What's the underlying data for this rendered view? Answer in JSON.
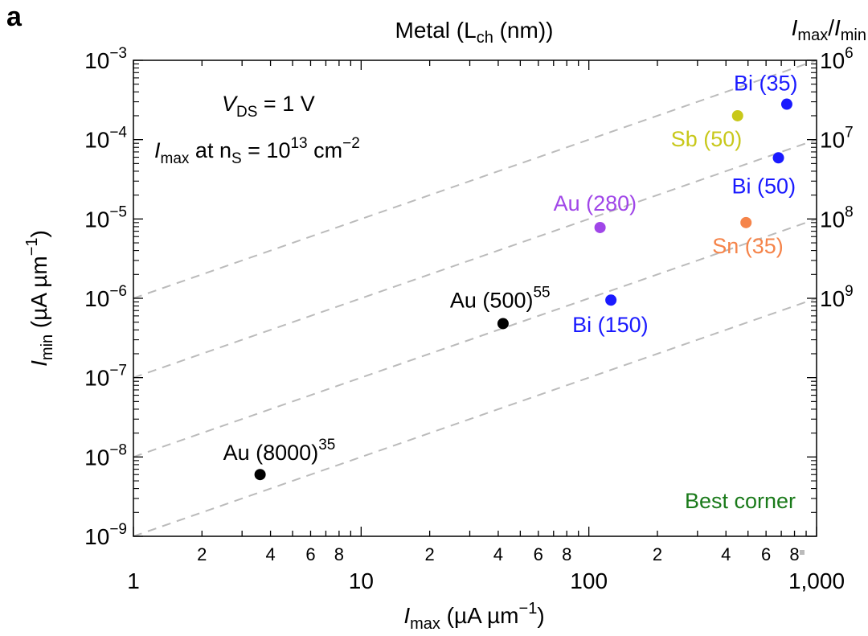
{
  "chart_data": {
    "type": "scatter",
    "panel_label": "a",
    "title": "Metal (L",
    "title_sub": "ch",
    "title_tail": " (nm))",
    "x_axis": {
      "label_main": "I",
      "label_sub": "max",
      "label_units": " (µA µm",
      "label_exp": "−1",
      "label_close": ")",
      "scale": "log",
      "range": [
        1,
        1000
      ],
      "major_ticks": [
        {
          "value": 1,
          "label": "1"
        },
        {
          "value": 10,
          "label": "10"
        },
        {
          "value": 100,
          "label": "100"
        },
        {
          "value": 1000,
          "label": "1,000"
        }
      ],
      "minor_labels": [
        "2",
        "4",
        "6",
        "8"
      ]
    },
    "y_axis": {
      "label_main": "I",
      "label_sub": "min",
      "label_units": " (µA µm",
      "label_exp": "−1",
      "label_close": ")",
      "scale": "log",
      "range": [
        1e-09,
        0.001
      ],
      "ticks": [
        {
          "value": 0.001,
          "base": "10",
          "exp": "−3"
        },
        {
          "value": 0.0001,
          "base": "10",
          "exp": "−4"
        },
        {
          "value": 1e-05,
          "base": "10",
          "exp": "−5"
        },
        {
          "value": 1e-06,
          "base": "10",
          "exp": "−6"
        },
        {
          "value": 1e-07,
          "base": "10",
          "exp": "−7"
        },
        {
          "value": 1e-08,
          "base": "10",
          "exp": "−8"
        },
        {
          "value": 1e-09,
          "base": "10",
          "exp": "−9"
        }
      ]
    },
    "right_axis": {
      "title_main": "I",
      "title_sub": "max",
      "title_slash": "/",
      "title_main2": "I",
      "title_sub2": "min",
      "ratio_ticks": [
        {
          "ratio": 1000000.0,
          "base": "10",
          "exp": "6"
        },
        {
          "ratio": 10000000.0,
          "base": "10",
          "exp": "7"
        },
        {
          "ratio": 100000000.0,
          "base": "10",
          "exp": "8"
        },
        {
          "ratio": 1000000000.0,
          "base": "10",
          "exp": "9"
        }
      ]
    },
    "reference_lines": {
      "description": "constant Imax/Imin ratio",
      "ratios": [
        1000000.0,
        10000000.0,
        100000000.0,
        1000000000.0
      ],
      "color": "#bbbbbb"
    },
    "annotations": {
      "vds_main": "V",
      "vds_sub": "DS",
      "vds_tail": " = 1 V",
      "imax_main": "I",
      "imax_sub": "max",
      "imax_at": " at n",
      "imax_ns_sub": "S",
      "imax_eq": " = 10",
      "imax_exp": "13",
      "imax_unit": " cm",
      "imax_unit_exp": "−2",
      "best_corner": "Best corner",
      "best_corner_color": "#1a7a1a"
    },
    "points": [
      {
        "label": "Au (8000)",
        "ref": "35",
        "x": 3.6,
        "y": 6e-09,
        "color": "#000000"
      },
      {
        "label": "Au (500)",
        "ref": "55",
        "x": 42,
        "y": 4.8e-07,
        "color": "#000000"
      },
      {
        "label": "Bi (150)",
        "ref": "",
        "x": 125,
        "y": 9.5e-07,
        "color": "#1a1aff"
      },
      {
        "label": "Au (280)",
        "ref": "",
        "x": 112,
        "y": 7.8e-06,
        "color": "#a046e8"
      },
      {
        "label": "Sn (35)",
        "ref": "",
        "x": 490,
        "y": 9e-06,
        "color": "#f5844a"
      },
      {
        "label": "Sb (50)",
        "ref": "",
        "x": 450,
        "y": 0.0002,
        "color": "#c8c81a"
      },
      {
        "label": "Bi (35)",
        "ref": "",
        "x": 740,
        "y": 0.00028,
        "color": "#1a1aff"
      },
      {
        "label": "Bi (50)",
        "ref": "",
        "x": 680,
        "y": 5.9e-05,
        "color": "#1a1aff"
      }
    ]
  }
}
